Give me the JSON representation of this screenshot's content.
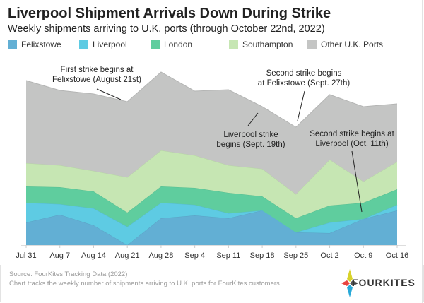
{
  "title": "Liverpool Shipment Arrivals Down During Strike",
  "subtitle": "Weekly shipments arriving to U.K. ports (through October 22nd, 2022)",
  "footer": {
    "source": "Source: FourKites Tracking Data (2022)",
    "note": "Chart tracks the weekly number of shipments arriving to U.K. ports for FourKites customers.",
    "logo": "FOURKITES"
  },
  "chart_data": {
    "type": "area",
    "stacked": true,
    "title": "Liverpool Shipment Arrivals Down During Strike",
    "subtitle": "Weekly shipments arriving to U.K. ports (through October 22nd, 2022)",
    "legend_position": "top",
    "grid": false,
    "y_axis_shown": false,
    "categories": [
      "Jul 31",
      "Aug 7",
      "Aug 14",
      "Aug 21",
      "Aug 28",
      "Sep 4",
      "Sep 11",
      "Sep 18",
      "Sep 25",
      "Oct 2",
      "Oct 9",
      "Oct 16"
    ],
    "series": [
      {
        "name": "Felixstowe",
        "color": "#62afd4",
        "values": [
          32,
          43,
          28,
          0,
          38,
          42,
          38,
          49,
          18,
          17,
          37,
          49
        ]
      },
      {
        "name": "Liverpool",
        "color": "#5ecbe3",
        "values": [
          28,
          15,
          24,
          26,
          22,
          15,
          7,
          0,
          0,
          15,
          0,
          8
        ]
      },
      {
        "name": "London",
        "color": "#5fcd9e",
        "values": [
          23,
          24,
          24,
          20,
          23,
          24,
          29,
          20,
          20,
          24,
          23,
          22
        ]
      },
      {
        "name": "Southampton",
        "color": "#c6e6b3",
        "values": [
          33,
          31,
          29,
          50,
          51,
          46,
          39,
          39,
          34,
          65,
          30,
          39
        ]
      },
      {
        "name": "Other U.K. Ports",
        "color": "#c4c5c4",
        "values": [
          117,
          106,
          109,
          107,
          111,
          91,
          107,
          88,
          95,
          92,
          106,
          82
        ]
      }
    ],
    "annotations": [
      {
        "lines": [
          "First strike begins at",
          "Felixstowe (August 21st)"
        ],
        "target": "Aug 21"
      },
      {
        "lines": [
          "Liverpool strike",
          "begins (Sept. 19th)"
        ],
        "target": "Sep 18"
      },
      {
        "lines": [
          "Second strike begins",
          "at Felixstowe (Sept. 27th)"
        ],
        "target": "Sep 25"
      },
      {
        "lines": [
          "Second strike begins at",
          "Liverpool (Oct. 11th)"
        ],
        "target": "Oct 9"
      }
    ]
  }
}
